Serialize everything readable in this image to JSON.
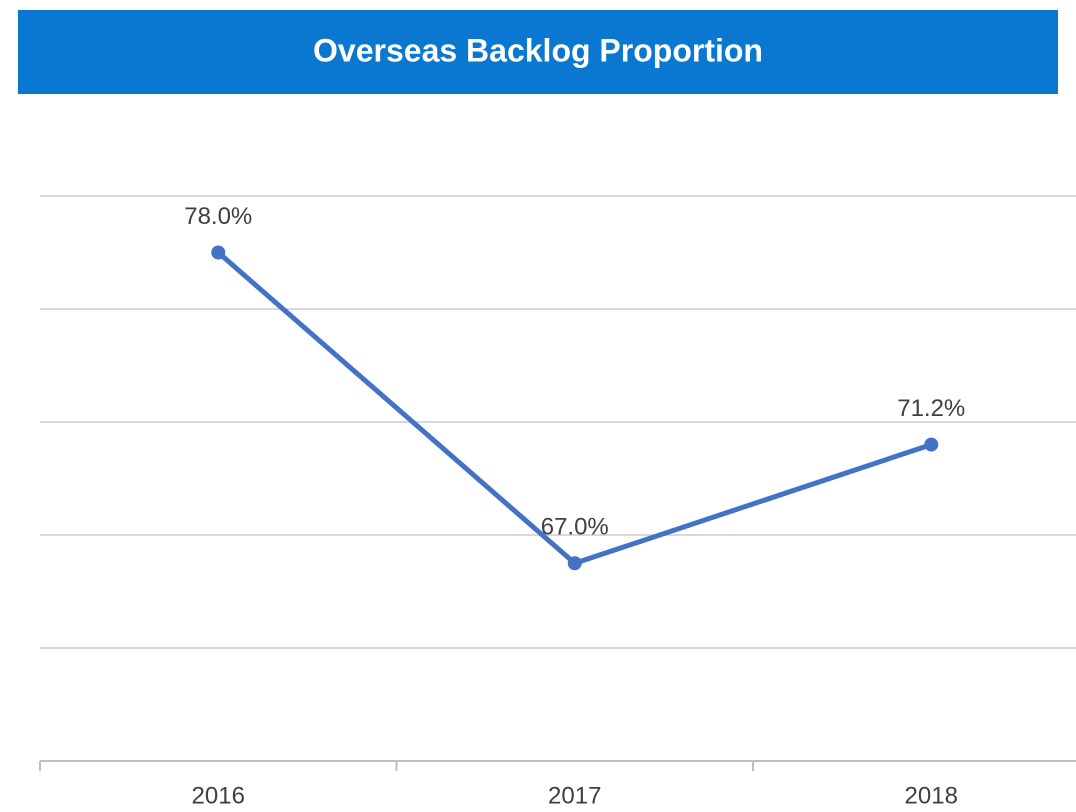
{
  "chart_data": {
    "type": "line",
    "title": "Overseas Backlog Proportion",
    "categories": [
      "2016",
      "2017",
      "2018"
    ],
    "series": [
      {
        "name": "Overseas Backlog Proportion",
        "color": "#4472c4",
        "values": [
          78.0,
          67.0,
          71.2
        ],
        "value_labels": [
          "78.0%",
          "67.0%",
          "71.2%"
        ]
      }
    ],
    "ylim": [
      60,
      80
    ],
    "yticks": [
      60,
      64,
      68,
      72,
      76,
      80
    ],
    "grid": true
  }
}
